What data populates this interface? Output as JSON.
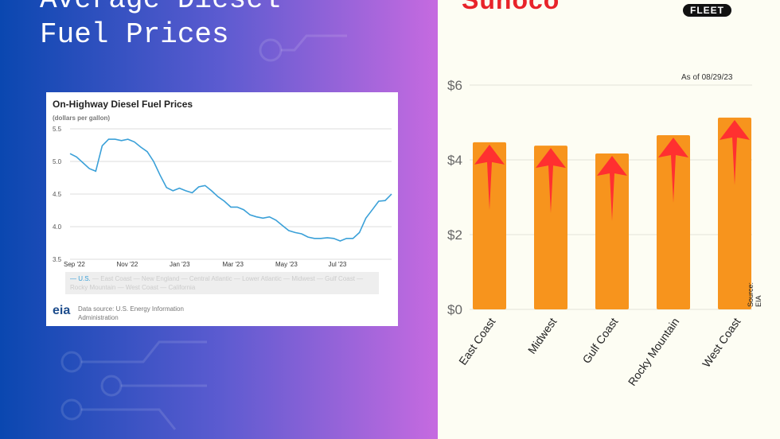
{
  "title": "Average Diesel\nFuel Prices",
  "line_card": {
    "title": "On-Highway Diesel Fuel Prices",
    "subtitle": "(dollars per gallon)",
    "legend": [
      "U.S.",
      "East Coast",
      "New England",
      "Central Atlantic",
      "Lower Atlantic",
      "Midwest",
      "Gulf Coast",
      "Rocky Mountain",
      "West Coast",
      "California"
    ],
    "eia_logo": "eia",
    "source": "Data source: U.S. Energy Information Administration"
  },
  "logo": {
    "text_red": "Sunoco",
    "text_orange": "",
    "badge": "FLEET"
  },
  "as_of": "As of 08/29/23",
  "source": "Source: EIA",
  "colors": {
    "bar": "#f7941d",
    "arrow": "#ff3030",
    "line": "#3aa0d8"
  },
  "chart_data": [
    {
      "type": "line",
      "title": "On-Highway Diesel Fuel Prices",
      "ylabel": "(dollars per gallon)",
      "ylim": [
        3.5,
        5.5
      ],
      "yticks": [
        "5.5",
        "5.0",
        "4.5",
        "4.0",
        "3.5"
      ],
      "xticks": [
        "Sep '22",
        "Nov '22",
        "Jan '23",
        "Mar '23",
        "May '23",
        "Jul '23"
      ],
      "series": [
        {
          "name": "U.S.",
          "values": [
            5.12,
            5.07,
            4.98,
            4.89,
            4.85,
            5.24,
            5.34,
            5.34,
            5.32,
            5.34,
            5.3,
            5.22,
            5.15,
            5.0,
            4.79,
            4.6,
            4.55,
            4.59,
            4.55,
            4.52,
            4.61,
            4.63,
            4.55,
            4.46,
            4.39,
            4.3,
            4.3,
            4.26,
            4.18,
            4.15,
            4.13,
            4.15,
            4.1,
            4.02,
            3.94,
            3.91,
            3.89,
            3.84,
            3.82,
            3.82,
            3.83,
            3.82,
            3.78,
            3.82,
            3.82,
            3.91,
            4.13,
            4.26,
            4.39,
            4.4,
            4.5
          ]
        }
      ]
    },
    {
      "type": "bar",
      "categories": [
        "East Coast",
        "Midwest",
        "Gulf Coast",
        "Rocky Mountain",
        "West Coast"
      ],
      "values": [
        4.47,
        4.38,
        4.17,
        4.66,
        5.13
      ],
      "ylim": [
        0,
        6
      ],
      "yticks": [
        "$0",
        "$2",
        "$4",
        "$6"
      ]
    }
  ]
}
